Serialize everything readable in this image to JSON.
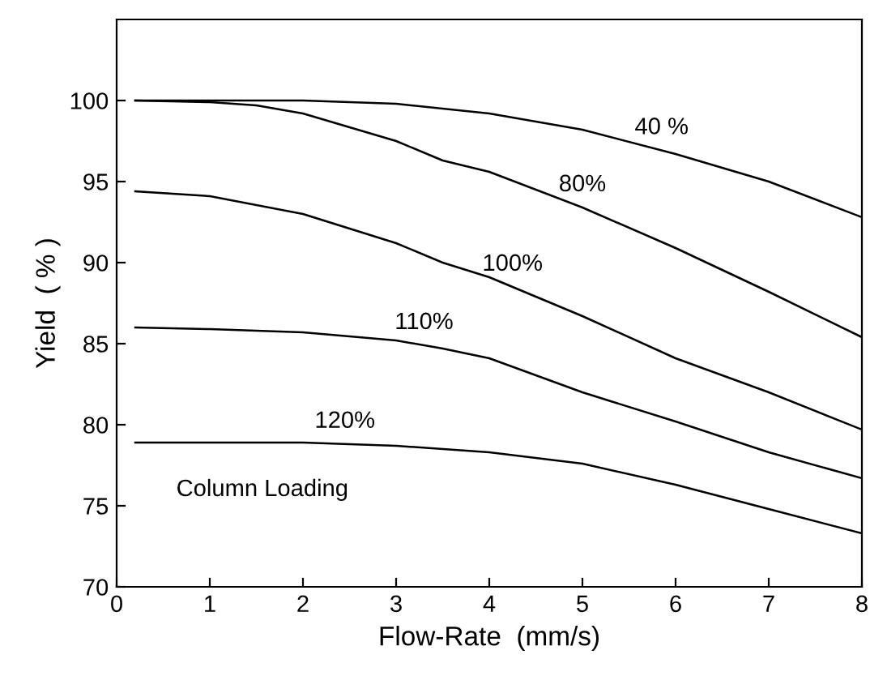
{
  "chart_data": {
    "type": "line",
    "xlabel": "Flow-Rate  (mm/s)",
    "ylabel": "Yield  ( % )",
    "xlim": [
      0,
      8
    ],
    "xticks": [
      0,
      1,
      2,
      3,
      4,
      5,
      6,
      7,
      8
    ],
    "ylim": [
      70,
      105
    ],
    "yticks": [
      70,
      75,
      80,
      85,
      90,
      95,
      100
    ],
    "grid": false,
    "legend": false,
    "marker": "none",
    "line_style": "solid",
    "annotations": [
      "Column Loading"
    ],
    "series": [
      {
        "name": "40 %",
        "color": "#000000",
        "x": [
          0.2,
          1,
          2,
          3,
          4,
          5,
          6,
          7,
          8
        ],
        "values": [
          100,
          100,
          100,
          99.8,
          99.2,
          98.2,
          96.7,
          95.0,
          92.8
        ]
      },
      {
        "name": "80%",
        "color": "#000000",
        "x": [
          0.2,
          1,
          1.5,
          2,
          3,
          3.5,
          4,
          5,
          6,
          7,
          8
        ],
        "values": [
          100,
          99.9,
          99.7,
          99.2,
          97.5,
          96.3,
          95.6,
          93.4,
          90.9,
          88.2,
          85.4
        ]
      },
      {
        "name": "100%",
        "color": "#000000",
        "x": [
          0.2,
          1,
          2,
          3,
          3.5,
          4,
          5,
          6,
          7,
          8
        ],
        "values": [
          94.4,
          94.1,
          93.0,
          91.2,
          90.0,
          89.1,
          86.7,
          84.1,
          82.0,
          79.7
        ]
      },
      {
        "name": "110%",
        "color": "#000000",
        "x": [
          0.2,
          1,
          2,
          3,
          3.5,
          4,
          5,
          6,
          7,
          8
        ],
        "values": [
          86.0,
          85.9,
          85.7,
          85.2,
          84.7,
          84.1,
          82.0,
          80.2,
          78.3,
          76.7
        ]
      },
      {
        "name": "120%",
        "color": "#000000",
        "x": [
          0.2,
          1,
          2,
          3,
          4,
          5,
          6,
          7,
          8
        ],
        "values": [
          78.9,
          78.9,
          78.9,
          78.7,
          78.3,
          77.6,
          76.3,
          74.8,
          73.3
        ]
      }
    ]
  }
}
